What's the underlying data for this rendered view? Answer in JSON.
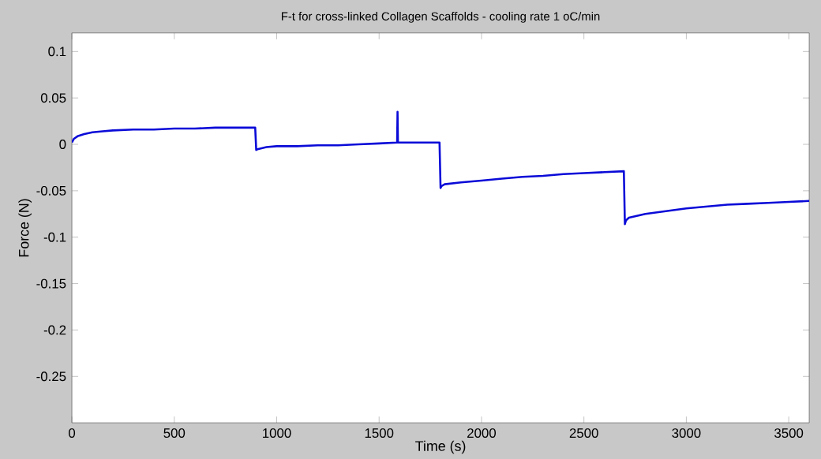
{
  "chart_data": {
    "type": "line",
    "title": "F-t for cross-linked Collagen Scaffolds - cooling rate 1 oC/min",
    "xlabel": "Time (s)",
    "ylabel": "Force (N)",
    "xlim": [
      0,
      3600
    ],
    "ylim": [
      -0.3,
      0.12
    ],
    "xticks": [
      0,
      500,
      1000,
      1500,
      2000,
      2500,
      3000,
      3500
    ],
    "yticks": [
      -0.25,
      -0.2,
      -0.15,
      -0.1,
      -0.05,
      0,
      0.05,
      0.1
    ],
    "series": [
      {
        "color": "#0a0ad8",
        "x": [
          0,
          10,
          30,
          60,
          100,
          150,
          200,
          300,
          400,
          500,
          600,
          700,
          800,
          895,
          900,
          910,
          950,
          1000,
          1100,
          1200,
          1300,
          1400,
          1500,
          1588,
          1590,
          1592,
          1700,
          1795,
          1800,
          1805,
          1820,
          1900,
          2000,
          2100,
          2200,
          2300,
          2400,
          2500,
          2600,
          2695,
          2700,
          2705,
          2720,
          2800,
          2900,
          3000,
          3100,
          3200,
          3300,
          3400,
          3500,
          3600
        ],
        "values": [
          0.002,
          0.006,
          0.009,
          0.011,
          0.013,
          0.014,
          0.015,
          0.016,
          0.016,
          0.017,
          0.017,
          0.018,
          0.018,
          0.018,
          -0.006,
          -0.005,
          -0.003,
          -0.002,
          -0.002,
          -0.001,
          -0.001,
          0.0,
          0.001,
          0.002,
          0.035,
          0.002,
          0.002,
          0.002,
          -0.047,
          -0.045,
          -0.043,
          -0.041,
          -0.039,
          -0.037,
          -0.035,
          -0.034,
          -0.032,
          -0.031,
          -0.03,
          -0.029,
          -0.086,
          -0.082,
          -0.079,
          -0.075,
          -0.072,
          -0.069,
          -0.067,
          -0.065,
          -0.064,
          -0.063,
          -0.062,
          -0.061
        ]
      }
    ]
  }
}
